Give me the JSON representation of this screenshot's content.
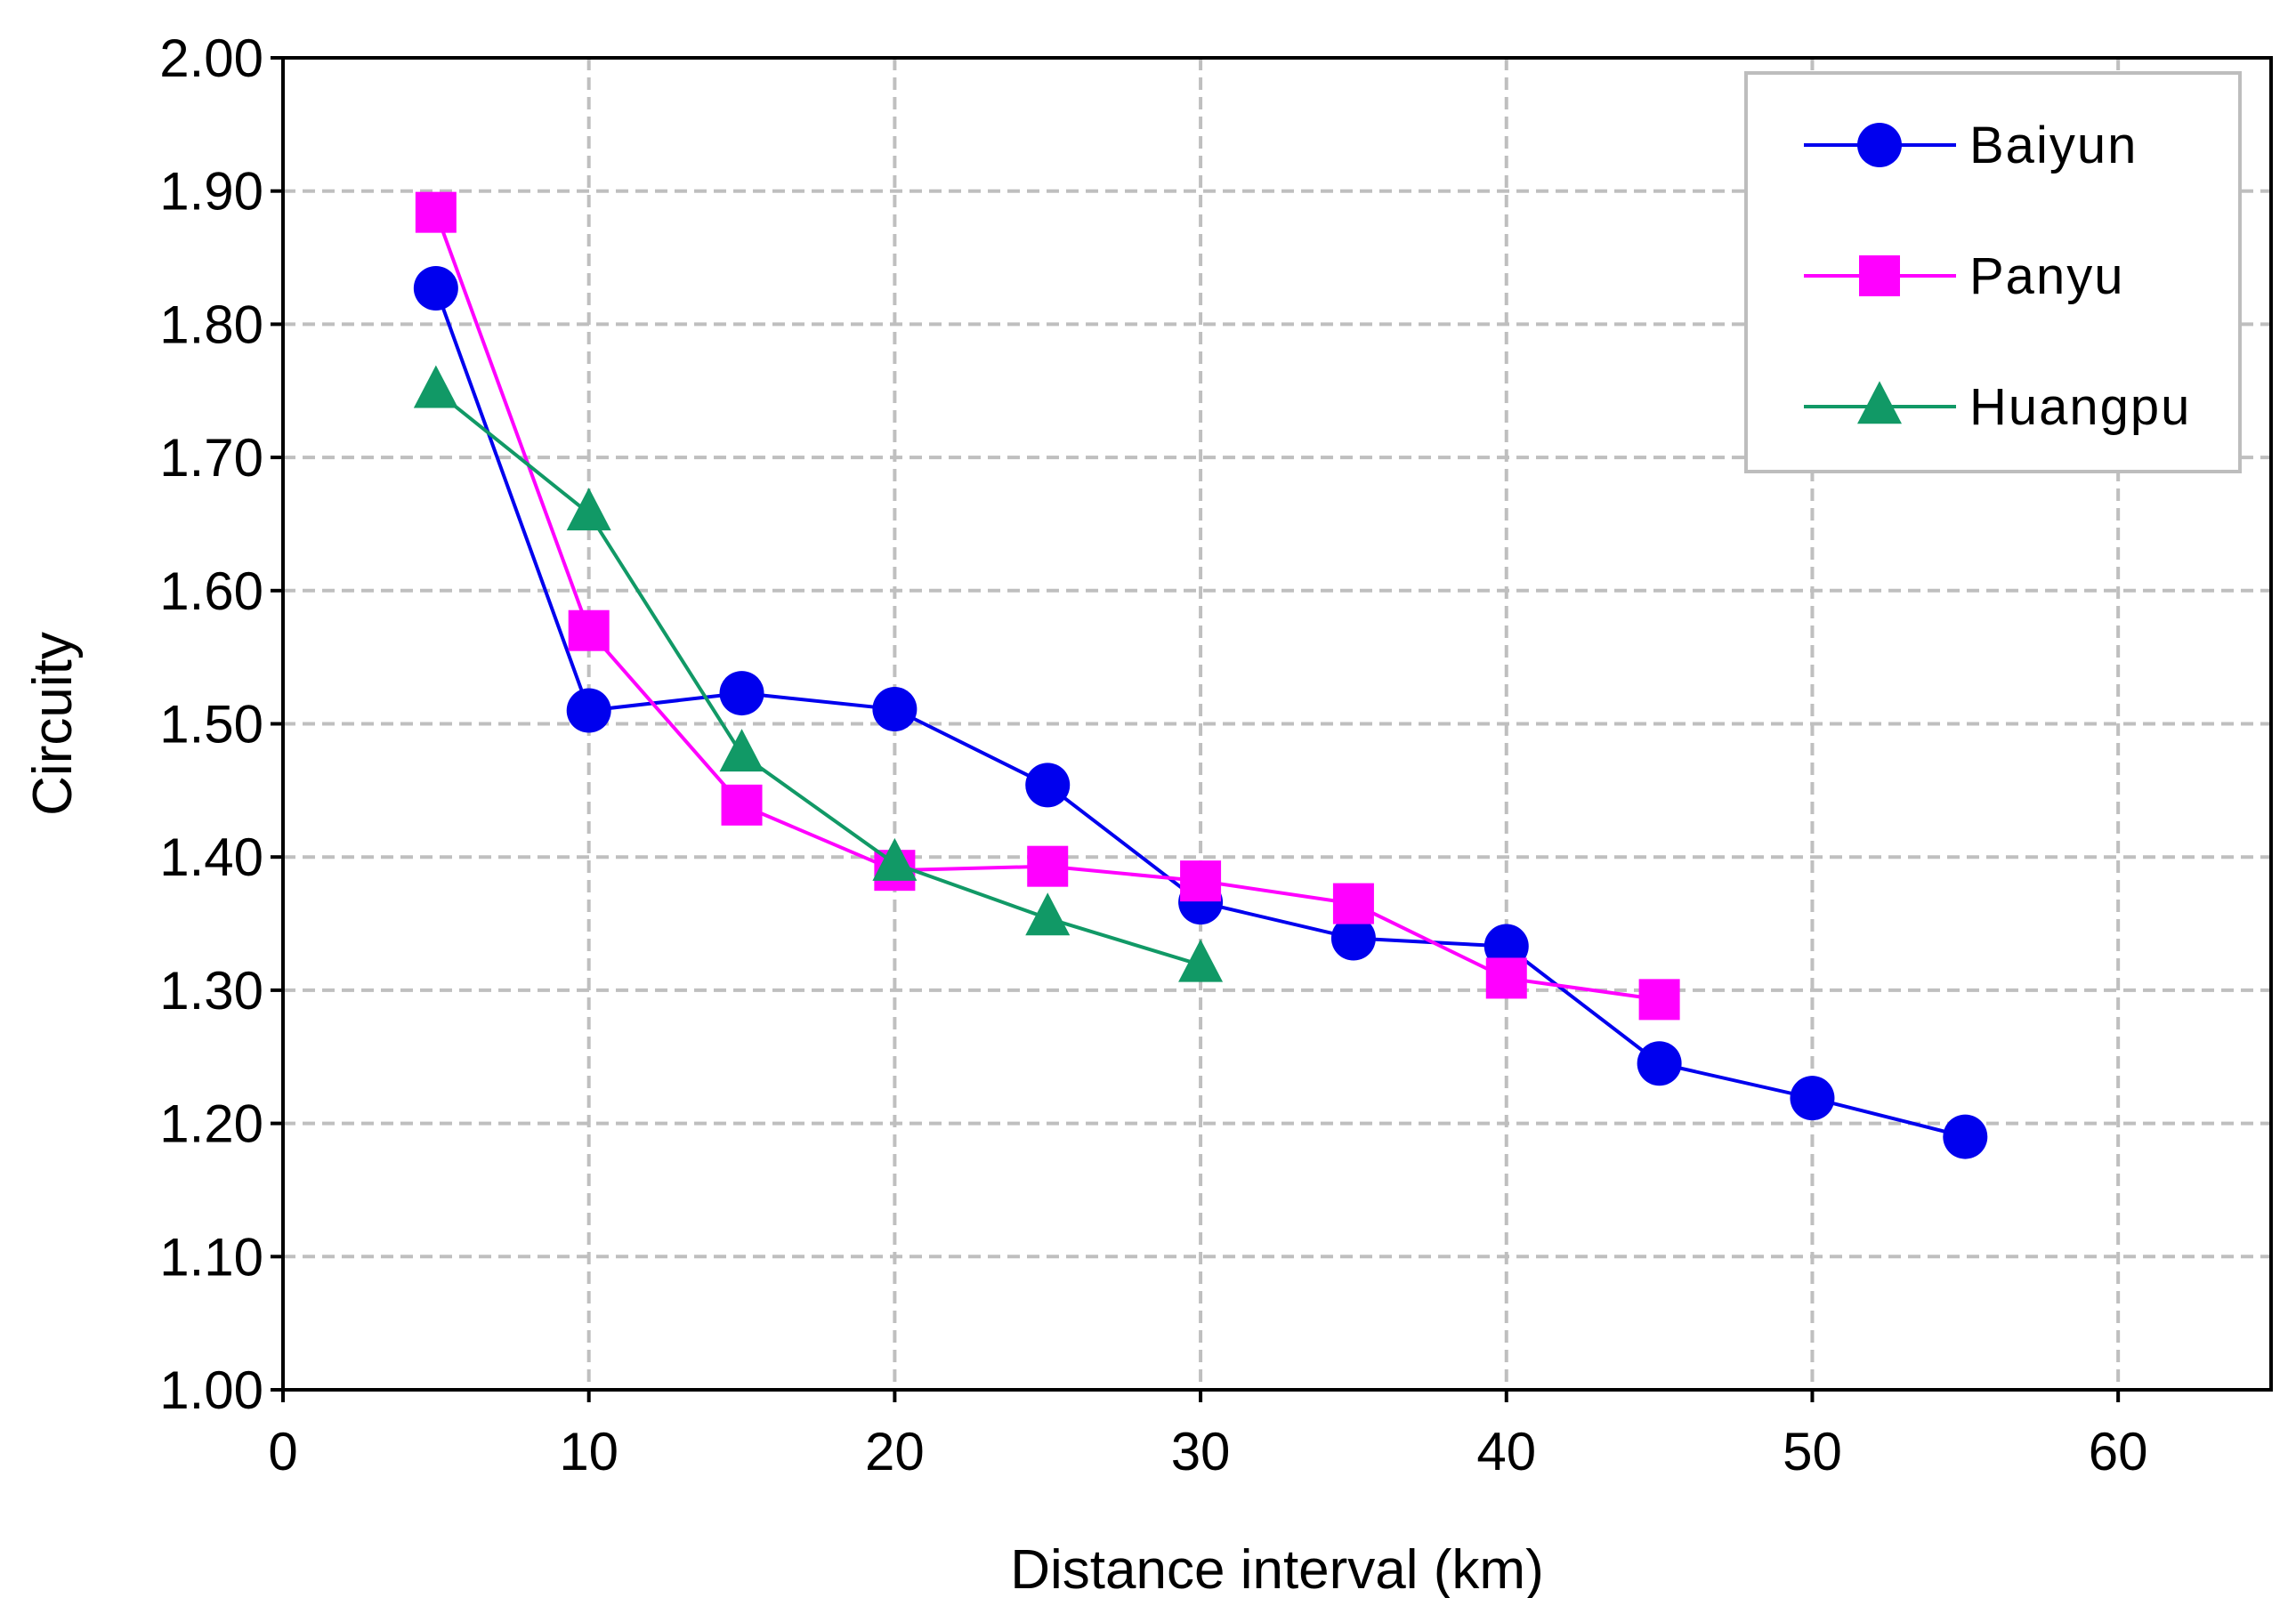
{
  "chart_data": {
    "type": "line",
    "title": "",
    "xlabel": "Distance interval (km)",
    "ylabel": "Circuity",
    "xlim": [
      0,
      65
    ],
    "ylim": [
      1.0,
      2.0
    ],
    "xticks": [
      0,
      10,
      20,
      30,
      40,
      50,
      60
    ],
    "yticks": [
      1.0,
      1.1,
      1.2,
      1.3,
      1.4,
      1.5,
      1.6,
      1.7,
      1.8,
      1.9,
      2.0
    ],
    "xtick_labels": [
      "0",
      "10",
      "20",
      "30",
      "40",
      "50",
      "60"
    ],
    "ytick_labels": [
      "1.00",
      "1.10",
      "1.20",
      "1.30",
      "1.40",
      "1.50",
      "1.60",
      "1.70",
      "1.80",
      "1.90",
      "2.00"
    ],
    "grid": true,
    "legend_position": "top-right",
    "series": [
      {
        "name": "Baiyun",
        "color": "#0000ee",
        "marker": "circle",
        "x": [
          5,
          10,
          15,
          20,
          25,
          30,
          35,
          40,
          45,
          50,
          55
        ],
        "y": [
          1.827,
          1.51,
          1.523,
          1.511,
          1.454,
          1.366,
          1.339,
          1.333,
          1.245,
          1.219,
          1.19
        ]
      },
      {
        "name": "Panyu",
        "color": "#ff00ff",
        "marker": "square",
        "x": [
          5,
          10,
          15,
          20,
          25,
          30,
          35,
          40,
          45
        ],
        "y": [
          1.884,
          1.57,
          1.439,
          1.39,
          1.393,
          1.382,
          1.365,
          1.309,
          1.293
        ]
      },
      {
        "name": "Huangpu",
        "color": "#119966",
        "marker": "triangle",
        "x": [
          5,
          10,
          15,
          20,
          25,
          30
        ],
        "y": [
          1.75,
          1.658,
          1.477,
          1.395,
          1.354,
          1.319
        ]
      }
    ]
  }
}
